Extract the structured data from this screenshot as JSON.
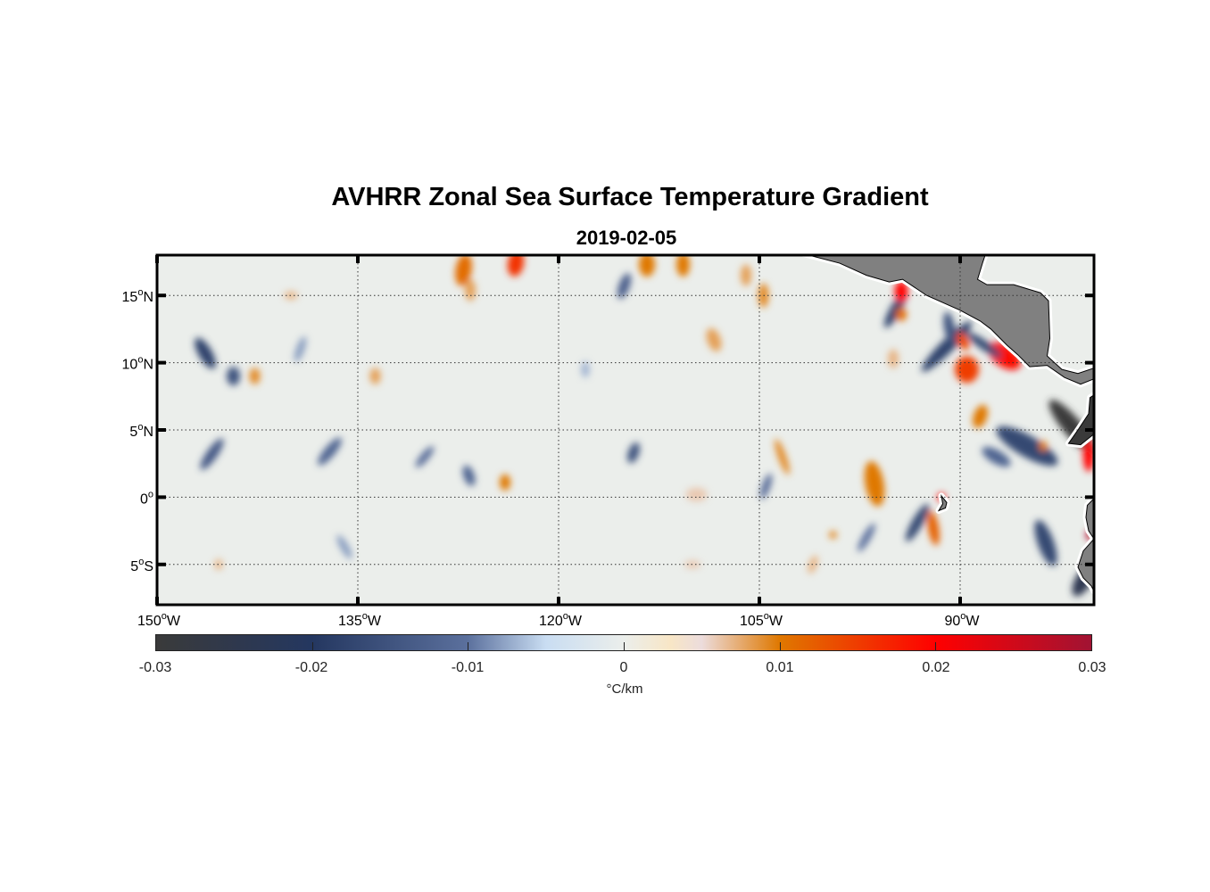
{
  "title": "AVHRR Zonal Sea Surface Temperature Gradient",
  "subtitle": "2019-02-05",
  "chart_data": {
    "type": "heatmap",
    "projection": "equirectangular",
    "lon_range": [
      -150,
      -80
    ],
    "lat_range": [
      -8,
      18
    ],
    "grid": true,
    "degree_symbol": "o",
    "x_ticks": [
      {
        "value": -150,
        "num": "150",
        "hem": "W"
      },
      {
        "value": -135,
        "num": "135",
        "hem": "W"
      },
      {
        "value": -120,
        "num": "120",
        "hem": "W"
      },
      {
        "value": -105,
        "num": "105",
        "hem": "W"
      },
      {
        "value": -90,
        "num": "90",
        "hem": "W"
      }
    ],
    "y_ticks": [
      {
        "value": 15,
        "num": "15",
        "hem": "N"
      },
      {
        "value": 10,
        "num": "10",
        "hem": "N"
      },
      {
        "value": 5,
        "num": "5",
        "hem": "N"
      },
      {
        "value": 0,
        "num": "0",
        "hem": ""
      },
      {
        "value": -5,
        "num": "5",
        "hem": "S"
      }
    ],
    "background_value": 0,
    "features": [
      {
        "lon": -127.1,
        "lat": 16.9,
        "rx": 0.6,
        "ry": 1.2,
        "rot": 10,
        "v": 0.011
      },
      {
        "lon": -123.2,
        "lat": 17.4,
        "rx": 0.6,
        "ry": 1.0,
        "rot": 10,
        "v": 0.016
      },
      {
        "lon": -126.6,
        "lat": 15.4,
        "rx": 0.4,
        "ry": 0.8,
        "rot": 0,
        "v": 0.008
      },
      {
        "lon": -113.4,
        "lat": 17.3,
        "rx": 0.6,
        "ry": 0.9,
        "rot": 0,
        "v": 0.01
      },
      {
        "lon": -110.7,
        "lat": 17.3,
        "rx": 0.5,
        "ry": 0.9,
        "rot": 0,
        "v": 0.01
      },
      {
        "lon": -115.1,
        "lat": 15.7,
        "rx": 0.4,
        "ry": 1.0,
        "rot": 20,
        "v": -0.013
      },
      {
        "lon": -106.0,
        "lat": 16.5,
        "rx": 0.4,
        "ry": 0.8,
        "rot": 0,
        "v": 0.008
      },
      {
        "lon": -146.4,
        "lat": 10.7,
        "rx": 0.5,
        "ry": 1.3,
        "rot": -30,
        "v": -0.018
      },
      {
        "lon": -144.3,
        "lat": 9.0,
        "rx": 0.5,
        "ry": 0.7,
        "rot": 0,
        "v": -0.015
      },
      {
        "lon": -142.7,
        "lat": 9.0,
        "rx": 0.4,
        "ry": 0.6,
        "rot": 0,
        "v": 0.009
      },
      {
        "lon": -133.7,
        "lat": 9.0,
        "rx": 0.4,
        "ry": 0.6,
        "rot": 0,
        "v": 0.008
      },
      {
        "lon": -139.3,
        "lat": 11.0,
        "rx": 0.3,
        "ry": 1.0,
        "rot": 20,
        "v": -0.008
      },
      {
        "lon": -108.4,
        "lat": 11.7,
        "rx": 0.5,
        "ry": 0.9,
        "rot": -20,
        "v": 0.008
      },
      {
        "lon": -104.7,
        "lat": 15.0,
        "rx": 0.4,
        "ry": 0.9,
        "rot": 0,
        "v": 0.009
      },
      {
        "lon": -94.8,
        "lat": 14.0,
        "rx": 0.4,
        "ry": 1.6,
        "rot": 30,
        "v": -0.018
      },
      {
        "lon": -94.4,
        "lat": 15.3,
        "rx": 0.5,
        "ry": 0.8,
        "rot": 0,
        "v": 0.02
      },
      {
        "lon": -94.4,
        "lat": 13.6,
        "rx": 0.4,
        "ry": 0.5,
        "rot": 0,
        "v": 0.011
      },
      {
        "lon": -91.0,
        "lat": 11.2,
        "rx": 0.5,
        "ry": 2.6,
        "rot": 45,
        "v": -0.018
      },
      {
        "lon": -90.8,
        "lat": 12.6,
        "rx": 0.4,
        "ry": 1.2,
        "rot": -10,
        "v": -0.015
      },
      {
        "lon": -89.8,
        "lat": 11.6,
        "rx": 0.4,
        "ry": 0.7,
        "rot": -30,
        "v": 0.014
      },
      {
        "lon": -89.5,
        "lat": 9.5,
        "rx": 0.9,
        "ry": 1.0,
        "rot": 0,
        "v": 0.015
      },
      {
        "lon": -86.7,
        "lat": 10.5,
        "rx": 0.8,
        "ry": 1.4,
        "rot": -55,
        "v": 0.019
      },
      {
        "lon": -88.2,
        "lat": 11.3,
        "rx": 0.35,
        "ry": 1.6,
        "rot": -55,
        "v": -0.017
      },
      {
        "lon": -88.5,
        "lat": 6.0,
        "rx": 0.5,
        "ry": 0.9,
        "rot": 20,
        "v": 0.01
      },
      {
        "lon": -95.0,
        "lat": 10.3,
        "rx": 0.4,
        "ry": 0.7,
        "rot": 0,
        "v": 0.007
      },
      {
        "lon": -81.6,
        "lat": 5.2,
        "rx": 0.7,
        "ry": 2.6,
        "rot": -40,
        "v": -0.03
      },
      {
        "lon": -85.0,
        "lat": 3.8,
        "rx": 0.8,
        "ry": 2.6,
        "rot": -60,
        "v": -0.017
      },
      {
        "lon": -87.3,
        "lat": 3.0,
        "rx": 0.5,
        "ry": 1.2,
        "rot": -60,
        "v": -0.012
      },
      {
        "lon": -80.4,
        "lat": 3.1,
        "rx": 0.4,
        "ry": 1.2,
        "rot": 0,
        "v": 0.02
      },
      {
        "lon": -83.8,
        "lat": 3.8,
        "rx": 0.3,
        "ry": 0.4,
        "rot": 0,
        "v": 0.01
      },
      {
        "lon": -96.4,
        "lat": 1.0,
        "rx": 0.7,
        "ry": 1.7,
        "rot": -10,
        "v": 0.01
      },
      {
        "lon": -92.0,
        "lat": -2.3,
        "rx": 0.4,
        "ry": 1.3,
        "rot": -10,
        "v": 0.012
      },
      {
        "lon": -93.2,
        "lat": -1.9,
        "rx": 0.4,
        "ry": 1.6,
        "rot": 30,
        "v": -0.017
      },
      {
        "lon": -91.4,
        "lat": 0.0,
        "rx": 0.3,
        "ry": 0.3,
        "rot": 0,
        "v": 0.02
      },
      {
        "lon": -83.6,
        "lat": -3.4,
        "rx": 0.6,
        "ry": 1.8,
        "rot": -20,
        "v": -0.017
      },
      {
        "lon": -80.8,
        "lat": -6.2,
        "rx": 0.6,
        "ry": 1.3,
        "rot": 30,
        "v": -0.024
      },
      {
        "lon": -80.3,
        "lat": -2.8,
        "rx": 0.3,
        "ry": 0.4,
        "rot": 0,
        "v": 0.028
      },
      {
        "lon": -145.9,
        "lat": 3.2,
        "rx": 0.4,
        "ry": 1.4,
        "rot": 35,
        "v": -0.014
      },
      {
        "lon": -137.1,
        "lat": 3.4,
        "rx": 0.4,
        "ry": 1.3,
        "rot": 40,
        "v": -0.012
      },
      {
        "lon": -130.0,
        "lat": 3.0,
        "rx": 0.3,
        "ry": 1.0,
        "rot": 40,
        "v": -0.011
      },
      {
        "lon": -126.7,
        "lat": 1.6,
        "rx": 0.4,
        "ry": 0.8,
        "rot": -20,
        "v": -0.012
      },
      {
        "lon": -124.0,
        "lat": 1.1,
        "rx": 0.4,
        "ry": 0.6,
        "rot": 0,
        "v": 0.01
      },
      {
        "lon": -114.4,
        "lat": 3.3,
        "rx": 0.4,
        "ry": 0.8,
        "rot": 20,
        "v": -0.015
      },
      {
        "lon": -104.5,
        "lat": 0.8,
        "rx": 0.3,
        "ry": 1.0,
        "rot": 20,
        "v": -0.011
      },
      {
        "lon": -103.3,
        "lat": 3.0,
        "rx": 0.3,
        "ry": 1.4,
        "rot": -20,
        "v": 0.009
      },
      {
        "lon": -109.7,
        "lat": 0.2,
        "rx": 0.8,
        "ry": 0.5,
        "rot": 0,
        "v": 0.006
      },
      {
        "lon": -136.0,
        "lat": -3.7,
        "rx": 0.3,
        "ry": 1.0,
        "rot": -30,
        "v": -0.008
      },
      {
        "lon": -101.0,
        "lat": -5.0,
        "rx": 0.3,
        "ry": 0.7,
        "rot": 20,
        "v": 0.007
      },
      {
        "lon": -145.4,
        "lat": -5.0,
        "rx": 0.3,
        "ry": 0.4,
        "rot": 0,
        "v": 0.007
      },
      {
        "lon": -99.5,
        "lat": -2.8,
        "rx": 0.3,
        "ry": 0.3,
        "rot": 0,
        "v": 0.009
      },
      {
        "lon": -97.0,
        "lat": -3.0,
        "rx": 0.3,
        "ry": 1.2,
        "rot": 30,
        "v": -0.01
      },
      {
        "lon": -118.0,
        "lat": 9.5,
        "rx": 0.3,
        "ry": 0.6,
        "rot": 0,
        "v": -0.007
      },
      {
        "lon": -140.0,
        "lat": 15.0,
        "rx": 0.5,
        "ry": 0.3,
        "rot": 0,
        "v": 0.007
      },
      {
        "lon": -110.0,
        "lat": -5.0,
        "rx": 0.6,
        "ry": 0.3,
        "rot": 0,
        "v": 0.006
      }
    ],
    "land": [
      {
        "name": "central-america",
        "fill": "#808080",
        "coords": [
          [
            -101.7,
            18.1
          ],
          [
            -99,
            17.4
          ],
          [
            -97,
            16.5
          ],
          [
            -95.3,
            16.0
          ],
          [
            -94.3,
            16.2
          ],
          [
            -92.5,
            15.0
          ],
          [
            -90,
            13.9
          ],
          [
            -88.5,
            13.1
          ],
          [
            -87.7,
            12.5
          ],
          [
            -86.5,
            11.3
          ],
          [
            -85.7,
            10.6
          ],
          [
            -84.8,
            9.7
          ],
          [
            -83.5,
            9.8
          ],
          [
            -82.2,
            8.9
          ],
          [
            -81,
            8.4
          ],
          [
            -80,
            8.8
          ],
          [
            -80,
            9.6
          ],
          [
            -81.2,
            9.2
          ],
          [
            -82.4,
            9.5
          ],
          [
            -83.5,
            10.5
          ],
          [
            -83.3,
            11.8
          ],
          [
            -83.4,
            14.6
          ],
          [
            -84.0,
            15.2
          ],
          [
            -86,
            15.8
          ],
          [
            -88.0,
            15.8
          ],
          [
            -88.7,
            16.2
          ],
          [
            -88.3,
            17.5
          ],
          [
            -88.1,
            18.1
          ]
        ]
      },
      {
        "name": "colombia-coast",
        "fill": "#3a3a3a",
        "coords": [
          [
            -80,
            7.6
          ],
          [
            -80.3,
            7.4
          ],
          [
            -80.4,
            6.2
          ],
          [
            -81.2,
            5.0
          ],
          [
            -81.9,
            4.0
          ],
          [
            -81.0,
            3.9
          ],
          [
            -80,
            4.7
          ]
        ]
      },
      {
        "name": "ecuador-peru",
        "fill": "#808080",
        "coords": [
          [
            -80,
            -0.1
          ],
          [
            -80.5,
            -0.6
          ],
          [
            -80.6,
            -1.5
          ],
          [
            -80.4,
            -2.5
          ],
          [
            -80,
            -3.1
          ],
          [
            -80.8,
            -4.0
          ],
          [
            -81.2,
            -5.2
          ],
          [
            -80.8,
            -6.0
          ],
          [
            -80.2,
            -6.6
          ],
          [
            -80,
            -7.0
          ]
        ]
      },
      {
        "name": "galapagos",
        "fill": "#808080",
        "coords": [
          [
            -91.4,
            0.1
          ],
          [
            -91.0,
            -0.4
          ],
          [
            -91.1,
            -0.8
          ],
          [
            -91.6,
            -1.0
          ],
          [
            -91.3,
            -0.5
          ]
        ]
      }
    ],
    "colorbar": {
      "label": "°C/km",
      "range": [
        -0.03,
        0.03
      ],
      "ticks": [
        "-0.03",
        "-0.02",
        "-0.01",
        "0",
        "0.01",
        "0.02",
        "0.03"
      ],
      "tick_values": [
        -0.03,
        -0.02,
        -0.01,
        0,
        0.01,
        0.02,
        0.03
      ],
      "colormap": [
        {
          "v": -0.03,
          "c": "#3a3a3a"
        },
        {
          "v": -0.02,
          "c": "#243760"
        },
        {
          "v": -0.01,
          "c": "#5b709d"
        },
        {
          "v": -0.005,
          "c": "#c9ddf2"
        },
        {
          "v": 0,
          "c": "#ebeeeb"
        },
        {
          "v": 0.003,
          "c": "#f8e6c6"
        },
        {
          "v": 0.005,
          "c": "#ecdcdc"
        },
        {
          "v": 0.01,
          "c": "#df7800"
        },
        {
          "v": 0.02,
          "c": "#ff0000"
        },
        {
          "v": 0.03,
          "c": "#a11333"
        }
      ]
    }
  }
}
